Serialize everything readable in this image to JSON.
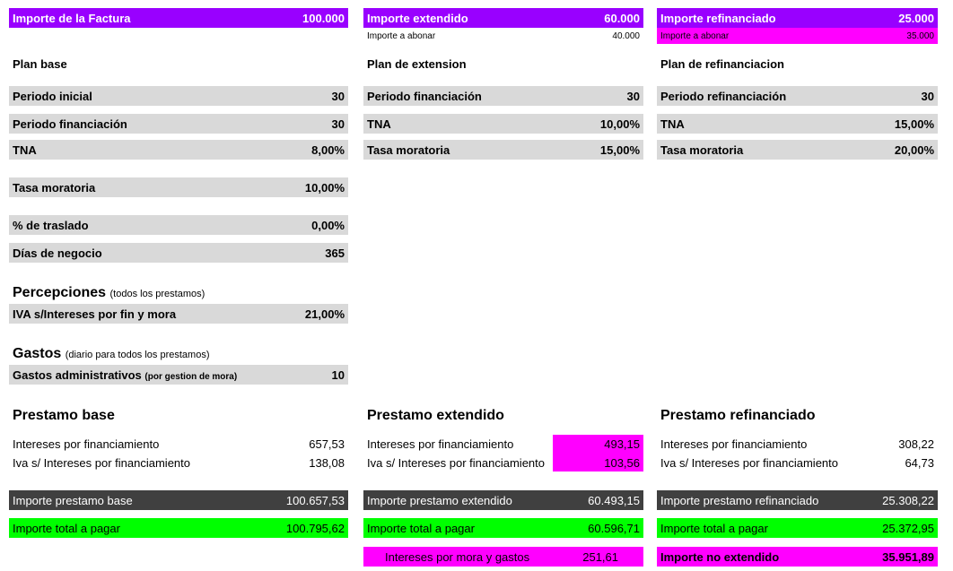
{
  "top": {
    "factura": {
      "label": "Importe de la Factura",
      "value": "100.000"
    },
    "extendido": {
      "label": "Importe extendido",
      "value": "60.000",
      "sub_label": "Importe a abonar",
      "sub_value": "40.000"
    },
    "refinanciado": {
      "label": "Importe refinanciado",
      "value": "25.000",
      "sub_label": "Importe a abonar",
      "sub_value": "35.000"
    }
  },
  "col1": {
    "title": "Plan base",
    "rows": [
      {
        "label": "Periodo inicial",
        "value": "30"
      },
      {
        "label": "Periodo financiación",
        "value": "30"
      },
      {
        "label": "TNA",
        "value": "8,00%"
      },
      {
        "label": "Tasa moratoria",
        "value": "10,00%"
      },
      {
        "label": "% de traslado",
        "value": "0,00%"
      },
      {
        "label": "Días de negocio",
        "value": "365"
      }
    ],
    "percepciones": {
      "title": "Percepciones",
      "note": "(todos los prestamos)",
      "label": "IVA s/Intereses por fin y mora",
      "value": "21,00%"
    },
    "gastos": {
      "title": "Gastos",
      "note": "(diario para todos los prestamos)",
      "label": "Gastos administrativos",
      "label_note": "(por gestion de mora)",
      "value": "10"
    },
    "prestamo": {
      "title": "Prestamo base",
      "int_label": "Intereses por financiamiento",
      "int_value": "657,53",
      "iva_label": "Iva s/ Intereses por financiamiento",
      "iva_value": "138,08",
      "importe_label": "Importe prestamo base",
      "importe_value": "100.657,53",
      "total_label": "Importe total a pagar",
      "total_value": "100.795,62"
    }
  },
  "col2": {
    "title": "Plan de extension",
    "rows": [
      {
        "label": "Periodo financiación",
        "value": "30"
      },
      {
        "label": "TNA",
        "value": "10,00%"
      },
      {
        "label": "Tasa moratoria",
        "value": "15,00%"
      }
    ],
    "prestamo": {
      "title": "Prestamo extendido",
      "int_label": "Intereses por financiamiento",
      "int_value": "493,15",
      "iva_label": "Iva s/ Intereses por financiamiento",
      "iva_value": "103,56",
      "importe_label": "Importe prestamo extendido",
      "importe_value": "60.493,15",
      "total_label": "Importe total a pagar",
      "total_value": "60.596,71",
      "extra_label": "Intereses por mora y gastos",
      "extra_value": "251,61"
    }
  },
  "col3": {
    "title": "Plan de refinanciacion",
    "rows": [
      {
        "label": "Periodo refinanciación",
        "value": "30"
      },
      {
        "label": "TNA",
        "value": "15,00%"
      },
      {
        "label": "Tasa moratoria",
        "value": "20,00%"
      }
    ],
    "prestamo": {
      "title": "Prestamo refinanciado",
      "int_label": "Intereses por financiamiento",
      "int_value": "308,22",
      "iva_label": "Iva s/ Intereses por financiamiento",
      "iva_value": "64,73",
      "importe_label": "Importe prestamo refinanciado",
      "importe_value": "25.308,22",
      "total_label": "Importe total a pagar",
      "total_value": "25.372,95",
      "extra_label": "Importe no extendido",
      "extra_value": "35.951,89"
    }
  }
}
